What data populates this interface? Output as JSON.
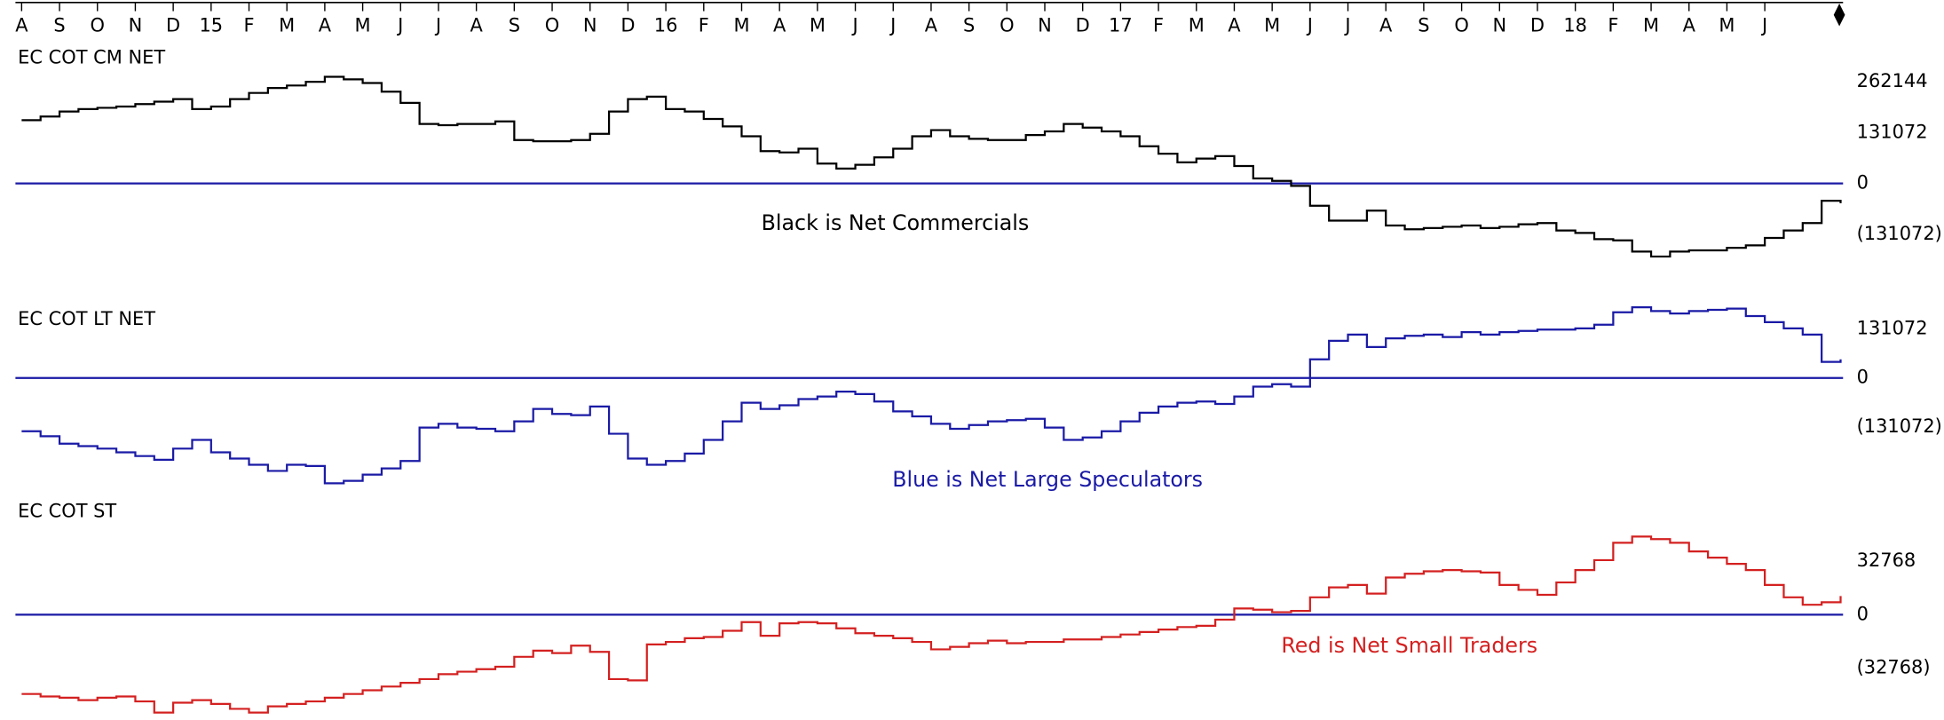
{
  "chart_data": {
    "type": "line",
    "step": true,
    "xlim": [
      0,
      48
    ],
    "xticks": [
      {
        "value": 0,
        "label": "A"
      },
      {
        "value": 1,
        "label": "S"
      },
      {
        "value": 2,
        "label": "O"
      },
      {
        "value": 3,
        "label": "N"
      },
      {
        "value": 4,
        "label": "D"
      },
      {
        "value": 5,
        "label": "15"
      },
      {
        "value": 6,
        "label": "F"
      },
      {
        "value": 7,
        "label": "M"
      },
      {
        "value": 8,
        "label": "A"
      },
      {
        "value": 9,
        "label": "M"
      },
      {
        "value": 10,
        "label": "J"
      },
      {
        "value": 11,
        "label": "J"
      },
      {
        "value": 12,
        "label": "A"
      },
      {
        "value": 13,
        "label": "S"
      },
      {
        "value": 14,
        "label": "O"
      },
      {
        "value": 15,
        "label": "N"
      },
      {
        "value": 16,
        "label": "D"
      },
      {
        "value": 17,
        "label": "16"
      },
      {
        "value": 18,
        "label": "F"
      },
      {
        "value": 19,
        "label": "M"
      },
      {
        "value": 20,
        "label": "A"
      },
      {
        "value": 21,
        "label": "M"
      },
      {
        "value": 22,
        "label": "J"
      },
      {
        "value": 23,
        "label": "J"
      },
      {
        "value": 24,
        "label": "A"
      },
      {
        "value": 25,
        "label": "S"
      },
      {
        "value": 26,
        "label": "O"
      },
      {
        "value": 27,
        "label": "N"
      },
      {
        "value": 28,
        "label": "D"
      },
      {
        "value": 29,
        "label": "17"
      },
      {
        "value": 30,
        "label": "F"
      },
      {
        "value": 31,
        "label": "M"
      },
      {
        "value": 32,
        "label": "A"
      },
      {
        "value": 33,
        "label": "M"
      },
      {
        "value": 34,
        "label": "J"
      },
      {
        "value": 35,
        "label": "J"
      },
      {
        "value": 36,
        "label": "A"
      },
      {
        "value": 37,
        "label": "S"
      },
      {
        "value": 38,
        "label": "O"
      },
      {
        "value": 39,
        "label": "N"
      },
      {
        "value": 40,
        "label": "D"
      },
      {
        "value": 41,
        "label": "18"
      },
      {
        "value": 42,
        "label": "F"
      },
      {
        "value": 43,
        "label": "M"
      },
      {
        "value": 44,
        "label": "A"
      },
      {
        "value": 45,
        "label": "M"
      },
      {
        "value": 46,
        "label": "J"
      }
    ],
    "x": [
      0,
      0.5,
      1,
      1.5,
      2,
      2.5,
      3,
      3.5,
      4,
      4.5,
      5,
      5.5,
      6,
      6.5,
      7,
      7.5,
      8,
      8.5,
      9,
      9.5,
      10,
      10.5,
      11,
      11.5,
      12,
      12.5,
      13,
      13.5,
      14,
      14.5,
      15,
      15.5,
      16,
      16.5,
      17,
      17.5,
      18,
      18.5,
      19,
      19.5,
      20,
      20.5,
      21,
      21.5,
      22,
      22.5,
      23,
      23.5,
      24,
      24.5,
      25,
      25.5,
      26,
      26.5,
      27,
      27.5,
      28,
      28.5,
      29,
      29.5,
      30,
      30.5,
      31,
      31.5,
      32,
      32.5,
      33,
      33.5,
      34,
      34.5,
      35,
      35.5,
      36,
      36.5,
      37,
      37.5,
      38,
      38.5,
      39,
      39.5,
      40,
      40.5,
      41,
      41.5,
      42,
      42.5,
      43,
      43.5,
      44,
      44.5,
      45,
      45.5,
      46,
      46.5,
      47,
      47.5,
      48
    ],
    "panels": [
      {
        "label": "EC COT CM NET",
        "annotation": "Black is Net Commercials",
        "zero_line_color": "#1a1aa6",
        "ylim": [
          -214400,
          297600
        ],
        "yticks": [
          262144,
          131072,
          0,
          {
            "value": -131072,
            "label": "(131072)"
          }
        ],
        "series": [
          {
            "color": "#000000",
            "values": [
              163200,
              172800,
              185600,
              192000,
              195200,
              198400,
              204800,
              211200,
              217600,
              192000,
              198400,
              217600,
              233600,
              246400,
              252800,
              262400,
              275200,
              268800,
              259200,
              236800,
              208000,
              153600,
              150400,
              153600,
              153600,
              160000,
              112000,
              108800,
              108800,
              112000,
              128000,
              185600,
              217600,
              224000,
              192000,
              185600,
              166400,
              147200,
              121600,
              83200,
              80000,
              89600,
              51200,
              38400,
              48000,
              67200,
              89600,
              121600,
              137600,
              121600,
              115200,
              112000,
              112000,
              124800,
              134400,
              153600,
              144000,
              134400,
              121600,
              96000,
              76800,
              54400,
              64000,
              70400,
              44800,
              12800,
              6400,
              -6400,
              -57600,
              -96000,
              -96000,
              -70400,
              -108800,
              -118400,
              -115200,
              -112000,
              -108800,
              -115200,
              -112000,
              -105600,
              -102400,
              -121600,
              -128000,
              -144000,
              -147200,
              -176000,
              -188800,
              -176000,
              -172800,
              -172800,
              -166400,
              -160000,
              -140800,
              -121600,
              -102400,
              -44800,
              -51200
            ]
          }
        ]
      },
      {
        "label": "EC COT LT NET",
        "annotation": "Blue is Net Large Speculators",
        "annotation_color": "#1a1aa6",
        "zero_line_color": "#1a1aa6",
        "ylim": [
          -313500,
          214500
        ],
        "yticks": [
          131072,
          0,
          {
            "value": -131072,
            "label": "(131072)"
          }
        ],
        "series": [
          {
            "color": "#1a1aa6",
            "values": [
              -141900,
              -155100,
              -174900,
              -181500,
              -188100,
              -198000,
              -207900,
              -217800,
              -188100,
              -165000,
              -198000,
              -214500,
              -231000,
              -247500,
              -231000,
              -234300,
              -280500,
              -273900,
              -257400,
              -240900,
              -221100,
              -132000,
              -122100,
              -132000,
              -135300,
              -141900,
              -115500,
              -82500,
              -95700,
              -99000,
              -75900,
              -148500,
              -214500,
              -231000,
              -221100,
              -201300,
              -165000,
              -115500,
              -66000,
              -82500,
              -72600,
              -56100,
              -49500,
              -36300,
              -42900,
              -62700,
              -89100,
              -102300,
              -122100,
              -135300,
              -125400,
              -115500,
              -112200,
              -108900,
              -132000,
              -165000,
              -158400,
              -141900,
              -115500,
              -92400,
              -75900,
              -66000,
              -62700,
              -69300,
              -49500,
              -23100,
              -16500,
              -23100,
              49500,
              99000,
              115500,
              82500,
              105600,
              112200,
              115500,
              108900,
              122100,
              115500,
              122100,
              125400,
              128700,
              128700,
              132000,
              141900,
              174900,
              188100,
              178200,
              171600,
              178200,
              181500,
              184800,
              165000,
              148500,
              132000,
              115500,
              42900,
              49500
            ]
          }
        ]
      },
      {
        "label": "EC COT ST",
        "annotation": "Red is Net Small Traders",
        "annotation_color": "#d42020",
        "zero_line_color": "#1a1aa6",
        "ylim": [
          -63840,
          53960
        ],
        "yticks": [
          32768,
          0,
          {
            "value": -32768,
            "label": "(32768)"
          }
        ],
        "series": [
          {
            "color": "#d42020",
            "values": [
              -48640,
              -50160,
              -50920,
              -52440,
              -50920,
              -50160,
              -53200,
              -60040,
              -53960,
              -52440,
              -54720,
              -57760,
              -60040,
              -56240,
              -54720,
              -53200,
              -50920,
              -48640,
              -46360,
              -44080,
              -41800,
              -39520,
              -36480,
              -34960,
              -33440,
              -31920,
              -25840,
              -22040,
              -23560,
              -19000,
              -22800,
              -39520,
              -40280,
              -18240,
              -16720,
              -14440,
              -13680,
              -9880,
              -4560,
              -12920,
              -5320,
              -4560,
              -5320,
              -8360,
              -11400,
              -12920,
              -14440,
              -16720,
              -21280,
              -19760,
              -17480,
              -15960,
              -17480,
              -16720,
              -16720,
              -15200,
              -15200,
              -13680,
              -12160,
              -10640,
              -9120,
              -7600,
              -6840,
              -3040,
              3800,
              3040,
              1520,
              2280,
              10640,
              16720,
              18240,
              12920,
              22800,
              25080,
              26600,
              27360,
              26600,
              25840,
              18240,
              15200,
              12160,
              19760,
              27360,
              33440,
              44080,
              47880,
              46360,
              44080,
              38760,
              34960,
              31160,
              27360,
              18240,
              10640,
              6080,
              7600,
              11400
            ]
          }
        ]
      }
    ]
  }
}
